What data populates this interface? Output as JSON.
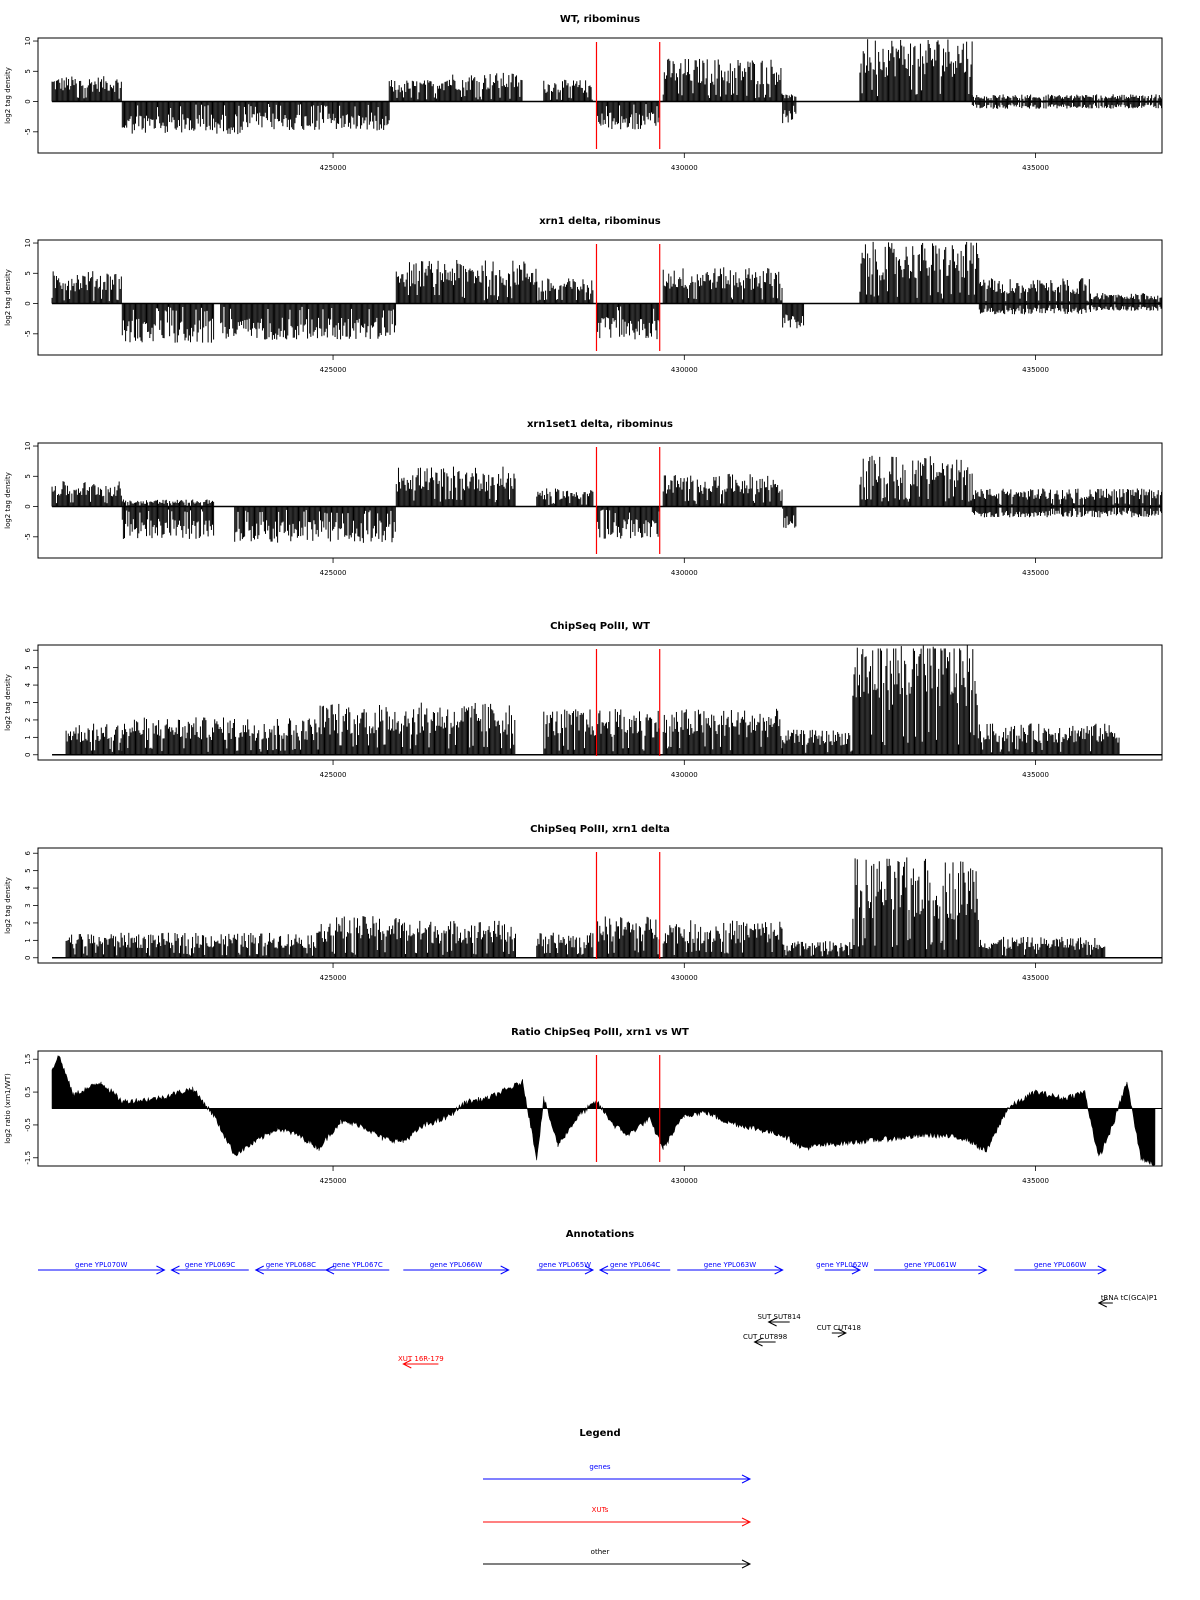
{
  "chart_data": [
    {
      "type": "bar",
      "title": "WT, ribominus",
      "ylabel": "log2 tag density",
      "xlim": [
        420800,
        436800
      ],
      "ylim": [
        -8.5,
        10.5
      ],
      "yticks": [
        "10",
        "5",
        "0",
        "-5"
      ],
      "xticks": [
        "425000",
        "430000",
        "435000"
      ],
      "markers_x": [
        428750,
        429650
      ],
      "marker_color": "#ff0000",
      "profile": [
        {
          "x0": 421000,
          "x1": 422000,
          "lo": 0,
          "hi": 3.5
        },
        {
          "x0": 422000,
          "x1": 423800,
          "lo": -4.5,
          "hi": 0
        },
        {
          "x0": 423800,
          "x1": 425000,
          "lo": -4,
          "hi": 0
        },
        {
          "x0": 425000,
          "x1": 425800,
          "lo": -4,
          "hi": 0
        },
        {
          "x0": 425800,
          "x1": 426500,
          "lo": 0,
          "hi": 3
        },
        {
          "x0": 426500,
          "x1": 427700,
          "lo": 0,
          "hi": 4
        },
        {
          "x0": 428000,
          "x1": 428700,
          "lo": 0,
          "hi": 3
        },
        {
          "x0": 428750,
          "x1": 429650,
          "lo": -4,
          "hi": 0
        },
        {
          "x0": 429700,
          "x1": 431400,
          "lo": 0,
          "hi": 6
        },
        {
          "x0": 431400,
          "x1": 431600,
          "lo": -3,
          "hi": 1
        },
        {
          "x0": 432500,
          "x1": 434100,
          "lo": 0,
          "hi": 9
        },
        {
          "x0": 434100,
          "x1": 436800,
          "lo": -1,
          "hi": 1
        }
      ]
    },
    {
      "type": "bar",
      "title": "xrn1 delta, ribominus",
      "ylabel": "log2 tag density",
      "xlim": [
        420800,
        436800
      ],
      "ylim": [
        -8.5,
        10.5
      ],
      "yticks": [
        "10",
        "5",
        "0",
        "-5"
      ],
      "xticks": [
        "425000",
        "430000",
        "435000"
      ],
      "markers_x": [
        428750,
        429650
      ],
      "marker_color": "#ff0000",
      "profile": [
        {
          "x0": 421000,
          "x1": 422000,
          "lo": 0,
          "hi": 4.5
        },
        {
          "x0": 422000,
          "x1": 423300,
          "lo": -5.5,
          "hi": 0
        },
        {
          "x0": 423400,
          "x1": 425900,
          "lo": -5,
          "hi": 0
        },
        {
          "x0": 425900,
          "x1": 427900,
          "lo": 0,
          "hi": 6
        },
        {
          "x0": 427900,
          "x1": 428700,
          "lo": 0,
          "hi": 3.5
        },
        {
          "x0": 428750,
          "x1": 429650,
          "lo": -5,
          "hi": 0
        },
        {
          "x0": 429700,
          "x1": 431400,
          "lo": 0,
          "hi": 5
        },
        {
          "x0": 431400,
          "x1": 431700,
          "lo": -3.5,
          "hi": 0
        },
        {
          "x0": 432500,
          "x1": 434200,
          "lo": 0,
          "hi": 8.5
        },
        {
          "x0": 434200,
          "x1": 435800,
          "lo": -1.5,
          "hi": 3.5
        },
        {
          "x0": 435800,
          "x1": 436800,
          "lo": -1,
          "hi": 1.5
        }
      ]
    },
    {
      "type": "bar",
      "title": "xrn1set1 delta, ribominus",
      "ylabel": "log2 tag density",
      "xlim": [
        420800,
        436800
      ],
      "ylim": [
        -8.5,
        10.5
      ],
      "yticks": [
        "10",
        "5",
        "0",
        "-5"
      ],
      "xticks": [
        "425000",
        "430000",
        "435000"
      ],
      "markers_x": [
        428750,
        429650
      ],
      "marker_color": "#ff0000",
      "profile": [
        {
          "x0": 421000,
          "x1": 422000,
          "lo": 0,
          "hi": 3.5
        },
        {
          "x0": 422000,
          "x1": 423300,
          "lo": -4.5,
          "hi": 1
        },
        {
          "x0": 423600,
          "x1": 425900,
          "lo": -5,
          "hi": 0
        },
        {
          "x0": 425900,
          "x1": 427600,
          "lo": 0,
          "hi": 5.5
        },
        {
          "x0": 427900,
          "x1": 428700,
          "lo": 0,
          "hi": 2.5
        },
        {
          "x0": 428750,
          "x1": 429650,
          "lo": -4.5,
          "hi": 0
        },
        {
          "x0": 429700,
          "x1": 431400,
          "lo": 0,
          "hi": 4.5
        },
        {
          "x0": 431400,
          "x1": 431600,
          "lo": -3,
          "hi": 0
        },
        {
          "x0": 432500,
          "x1": 434100,
          "lo": 0,
          "hi": 7
        },
        {
          "x0": 434100,
          "x1": 436800,
          "lo": -1.5,
          "hi": 2.5
        }
      ]
    },
    {
      "type": "bar",
      "title": "ChipSeq PolII, WT",
      "ylabel": "log2 tag density",
      "xlim": [
        420800,
        436800
      ],
      "ylim": [
        -0.3,
        6.3
      ],
      "yticks": [
        "6",
        "5",
        "4",
        "3",
        "2",
        "1",
        "0"
      ],
      "xticks": [
        "425000",
        "430000",
        "435000"
      ],
      "markers_x": [
        428750,
        429650
      ],
      "marker_color": "#ff0000",
      "profile": [
        {
          "x0": 421200,
          "x1": 422000,
          "lo": 0,
          "hi": 1.5
        },
        {
          "x0": 422000,
          "x1": 424800,
          "lo": 0,
          "hi": 1.8
        },
        {
          "x0": 424800,
          "x1": 427600,
          "lo": 0,
          "hi": 2.5
        },
        {
          "x0": 428000,
          "x1": 429650,
          "lo": 0,
          "hi": 2.2
        },
        {
          "x0": 429700,
          "x1": 431400,
          "lo": 0,
          "hi": 2.2
        },
        {
          "x0": 431400,
          "x1": 432400,
          "lo": 0,
          "hi": 1.2
        },
        {
          "x0": 432400,
          "x1": 434200,
          "lo": 0,
          "hi": 5.7
        },
        {
          "x0": 434200,
          "x1": 436200,
          "lo": 0,
          "hi": 1.5
        }
      ]
    },
    {
      "type": "bar",
      "title": "ChipSeq PolII, xrn1 delta",
      "ylabel": "log2 tag density",
      "xlim": [
        420800,
        436800
      ],
      "ylim": [
        -0.3,
        6.3
      ],
      "yticks": [
        "6",
        "5",
        "4",
        "3",
        "2",
        "1",
        "0"
      ],
      "xticks": [
        "425000",
        "430000",
        "435000"
      ],
      "markers_x": [
        428750,
        429650
      ],
      "marker_color": "#ff0000",
      "profile": [
        {
          "x0": 421200,
          "x1": 423000,
          "lo": 0,
          "hi": 1.2
        },
        {
          "x0": 423000,
          "x1": 424800,
          "lo": 0,
          "hi": 1.2
        },
        {
          "x0": 424800,
          "x1": 426000,
          "lo": 0,
          "hi": 2.0
        },
        {
          "x0": 426000,
          "x1": 427600,
          "lo": 0,
          "hi": 1.8
        },
        {
          "x0": 427900,
          "x1": 428700,
          "lo": 0,
          "hi": 1.2
        },
        {
          "x0": 428750,
          "x1": 429650,
          "lo": 0,
          "hi": 2.0
        },
        {
          "x0": 429700,
          "x1": 431400,
          "lo": 0,
          "hi": 1.8
        },
        {
          "x0": 431400,
          "x1": 432400,
          "lo": 0,
          "hi": 0.8
        },
        {
          "x0": 432400,
          "x1": 434200,
          "lo": 0,
          "hi": 4.8
        },
        {
          "x0": 434200,
          "x1": 436000,
          "lo": 0,
          "hi": 1.0
        }
      ]
    },
    {
      "type": "area",
      "title": "Ratio ChipSeq PolII, xrn1 vs WT",
      "ylabel": "log2 ratio (xrn1/WT)",
      "xlim": [
        420800,
        436800
      ],
      "ylim": [
        -1.75,
        1.75
      ],
      "yticks": [
        "1.5",
        "0.5",
        "-0.5",
        "-1.5"
      ],
      "xticks": [
        "425000",
        "430000",
        "435000"
      ],
      "markers_x": [
        428750,
        429650
      ],
      "marker_color": "#ff0000",
      "x": [
        421000,
        421100,
        421300,
        421700,
        422000,
        422500,
        423000,
        423300,
        423600,
        423900,
        424200,
        424500,
        424800,
        425100,
        425400,
        425700,
        426000,
        426300,
        426600,
        426900,
        427200,
        427500,
        427700,
        427900,
        428000,
        428200,
        428500,
        428750,
        429000,
        429200,
        429500,
        429700,
        430000,
        430300,
        430600,
        431000,
        431400,
        431700,
        432000,
        432500,
        433000,
        433500,
        434000,
        434300,
        434600,
        435000,
        435400,
        435700,
        435900,
        436100,
        436300,
        436500,
        436700
      ],
      "y": [
        1.2,
        1.6,
        0.4,
        0.8,
        0.2,
        0.3,
        0.6,
        -0.2,
        -1.4,
        -1.0,
        -0.6,
        -0.8,
        -1.2,
        -0.4,
        -0.5,
        -0.9,
        -1.0,
        -0.5,
        -0.3,
        0.2,
        0.3,
        0.6,
        0.8,
        -1.5,
        0.3,
        -1.1,
        -0.2,
        0.2,
        -0.5,
        -0.8,
        -0.3,
        -1.2,
        -0.2,
        -0.1,
        -0.4,
        -0.6,
        -0.8,
        -1.2,
        -1.1,
        -1.0,
        -0.9,
        -0.8,
        -0.9,
        -1.3,
        0.0,
        0.5,
        0.3,
        0.5,
        -1.5,
        -0.5,
        0.8,
        -1.5,
        -1.7
      ]
    }
  ],
  "annotations": {
    "title": "Annotations",
    "items": [
      {
        "label": "gene YPL070W",
        "x0": 420800,
        "x1": 422600,
        "row": 0,
        "color": "#0000ff",
        "dir": "right"
      },
      {
        "label": "gene YPL069C",
        "x0": 422700,
        "x1": 423800,
        "row": 0,
        "color": "#0000ff",
        "dir": "left"
      },
      {
        "label": "gene YPL068C",
        "x0": 423900,
        "x1": 424900,
        "row": 0,
        "color": "#0000ff",
        "dir": "left"
      },
      {
        "label": "gene YPL067C",
        "x0": 424900,
        "x1": 425800,
        "row": 0,
        "color": "#0000ff",
        "dir": "left"
      },
      {
        "label": "gene YPL066W",
        "x0": 426000,
        "x1": 427500,
        "row": 0,
        "color": "#0000ff",
        "dir": "right"
      },
      {
        "label": "gene YPL065W",
        "x0": 427900,
        "x1": 428700,
        "row": 0,
        "color": "#0000ff",
        "dir": "right"
      },
      {
        "label": "gene YPL064C",
        "x0": 428800,
        "x1": 429800,
        "row": 0,
        "color": "#0000ff",
        "dir": "left"
      },
      {
        "label": "gene YPL063W",
        "x0": 429900,
        "x1": 431400,
        "row": 0,
        "color": "#0000ff",
        "dir": "right"
      },
      {
        "label": "gene YPL062W",
        "x0": 432000,
        "x1": 432500,
        "row": 0,
        "color": "#0000ff",
        "dir": "right"
      },
      {
        "label": "gene YPL061W",
        "x0": 432700,
        "x1": 434300,
        "row": 0,
        "color": "#0000ff",
        "dir": "right"
      },
      {
        "label": "gene YPL060W",
        "x0": 434700,
        "x1": 436000,
        "row": 0,
        "color": "#0000ff",
        "dir": "right"
      },
      {
        "label": "tRNA tC(GCA)P1",
        "x0": 435900,
        "x1": 436100,
        "row": 1,
        "color": "#000000",
        "dir": "left"
      },
      {
        "label": "SUT SUT814",
        "x0": 431200,
        "x1": 431500,
        "row": 2,
        "color": "#000000",
        "dir": "left"
      },
      {
        "label": "CUT CUT418",
        "x0": 432100,
        "x1": 432300,
        "row": 3,
        "color": "#000000",
        "dir": "right"
      },
      {
        "label": "CUT CUT898",
        "x0": 431000,
        "x1": 431300,
        "row": 4,
        "color": "#000000",
        "dir": "left"
      },
      {
        "label": "XUT 16R-179",
        "x0": 426000,
        "x1": 426500,
        "row": 5,
        "color": "#ff0000",
        "dir": "left"
      }
    ]
  },
  "legend": {
    "title": "Legend",
    "items": [
      {
        "label": "genes",
        "color": "#0000ff"
      },
      {
        "label": "XUTs",
        "color": "#ff0000"
      },
      {
        "label": "other",
        "color": "#000000"
      }
    ]
  }
}
